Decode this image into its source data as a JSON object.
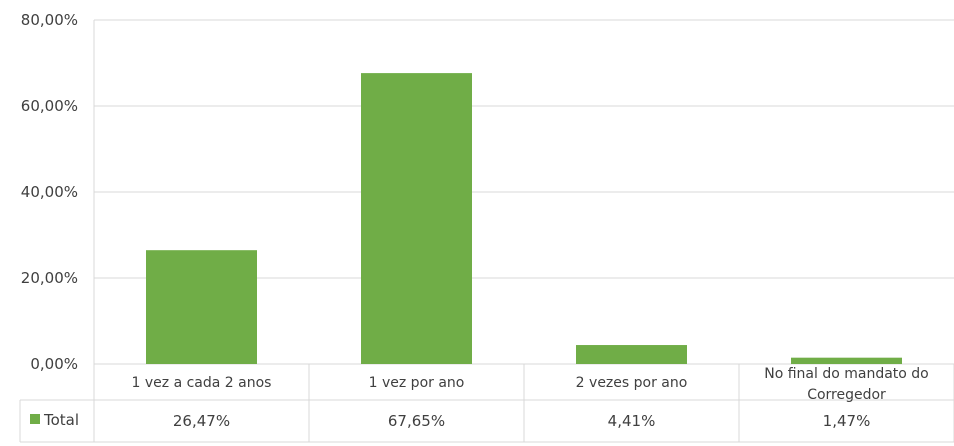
{
  "chart_data": {
    "type": "bar",
    "title": "",
    "xlabel": "",
    "ylabel": "",
    "ylim": [
      0,
      80
    ],
    "yticks": [
      {
        "value": 0,
        "label": "0,00%"
      },
      {
        "value": 20,
        "label": "20,00%"
      },
      {
        "value": 40,
        "label": "40,00%"
      },
      {
        "value": 60,
        "label": "60,00%"
      },
      {
        "value": 80,
        "label": "80,00%"
      }
    ],
    "grid": true,
    "legend_placement": "bottom-left (data table)",
    "categories": [
      [
        "1 vez a cada 2 anos"
      ],
      [
        "1 vez por ano"
      ],
      [
        "2 vezes por ano"
      ],
      [
        "No final do mandato do",
        "Corregedor"
      ]
    ],
    "series": [
      {
        "name": "Total",
        "color": "#70ad47",
        "values": [
          26.47,
          67.65,
          4.41,
          1.47
        ],
        "value_labels": [
          "26,47%",
          "67,65%",
          "4,41%",
          "1,47%"
        ]
      }
    ]
  }
}
